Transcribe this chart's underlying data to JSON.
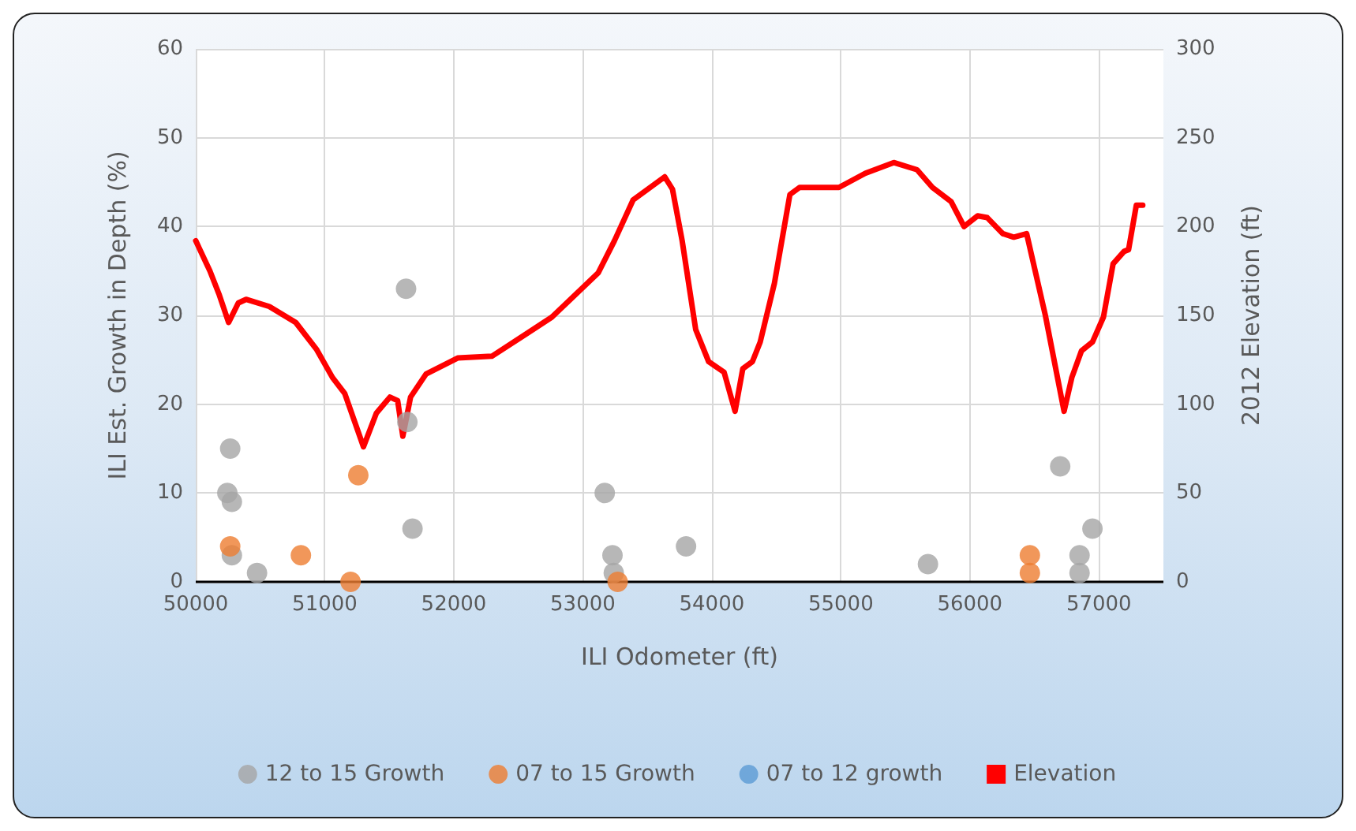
{
  "chart_data": {
    "type": "scatter",
    "xlabel": "ILI Odometer (ft)",
    "ylabel": "ILI Est. Growth in Depth (%)",
    "y2label": "2012 Elevation (ft)",
    "xlim": [
      50000,
      57500
    ],
    "xticks": [
      50000,
      51000,
      52000,
      53000,
      54000,
      55000,
      56000,
      57000
    ],
    "ylim": [
      0,
      60
    ],
    "yticks": [
      0,
      10,
      20,
      30,
      40,
      50,
      60
    ],
    "y2lim": [
      0,
      300
    ],
    "y2ticks": [
      0,
      50,
      100,
      150,
      200,
      250,
      300
    ],
    "grid": true,
    "legend": "bottom",
    "marker": "circle",
    "series": [
      {
        "name": "12 to 15 Growth",
        "color": "#a5a5a5",
        "x": [
          50267,
          50245,
          50280,
          50280,
          50475,
          51630,
          51640,
          51680,
          53170,
          53230,
          53240,
          53800,
          55675,
          56700,
          56950,
          56850,
          56850
        ],
        "values": [
          15,
          10,
          9,
          3,
          1,
          33,
          18,
          6,
          10,
          3,
          1,
          4,
          2,
          13,
          6,
          3,
          1
        ]
      },
      {
        "name": "07 to 15 Growth",
        "color": "#ed7d31",
        "x": [
          50267,
          50815,
          51260,
          51200,
          53270,
          56465,
          56465
        ],
        "values": [
          4,
          3,
          12,
          0,
          0,
          3,
          1
        ]
      },
      {
        "name": "07 to 12 growth",
        "color": "#5b9bd5"
      },
      {
        "name": "Elevation",
        "type": "line",
        "axis": "y2",
        "color": "#ff0000",
        "marker": "none",
        "line_style": "solid",
        "x": [
          50000,
          50110,
          50180,
          50255,
          50330,
          50390,
          50570,
          50775,
          50935,
          51060,
          51155,
          51300,
          51400,
          51505,
          51565,
          51605,
          51665,
          51785,
          52030,
          52295,
          52550,
          52760,
          53120,
          53245,
          53390,
          53635,
          53695,
          53770,
          53875,
          53975,
          54095,
          54180,
          54240,
          54315,
          54375,
          54485,
          54605,
          54680,
          54985,
          55190,
          55410,
          55590,
          55710,
          55855,
          55955,
          56060,
          56135,
          56255,
          56340,
          56440,
          56585,
          56730,
          56790,
          56865,
          56950,
          57035,
          57110,
          57195,
          57230,
          57290,
          57340
        ],
        "values": [
          192,
          175,
          162,
          146,
          157,
          159,
          155,
          146,
          131,
          115,
          106,
          76,
          95,
          104,
          102,
          82,
          104,
          117,
          126,
          127,
          139,
          149,
          174,
          192,
          215,
          228,
          221,
          192,
          142,
          124,
          118,
          96,
          120,
          124,
          135,
          168,
          218,
          222,
          222,
          230,
          236,
          232,
          222,
          214,
          200,
          206,
          205,
          196,
          194,
          196,
          150,
          96,
          115,
          130,
          135,
          149,
          179,
          186,
          187,
          212,
          212
        ]
      }
    ]
  }
}
